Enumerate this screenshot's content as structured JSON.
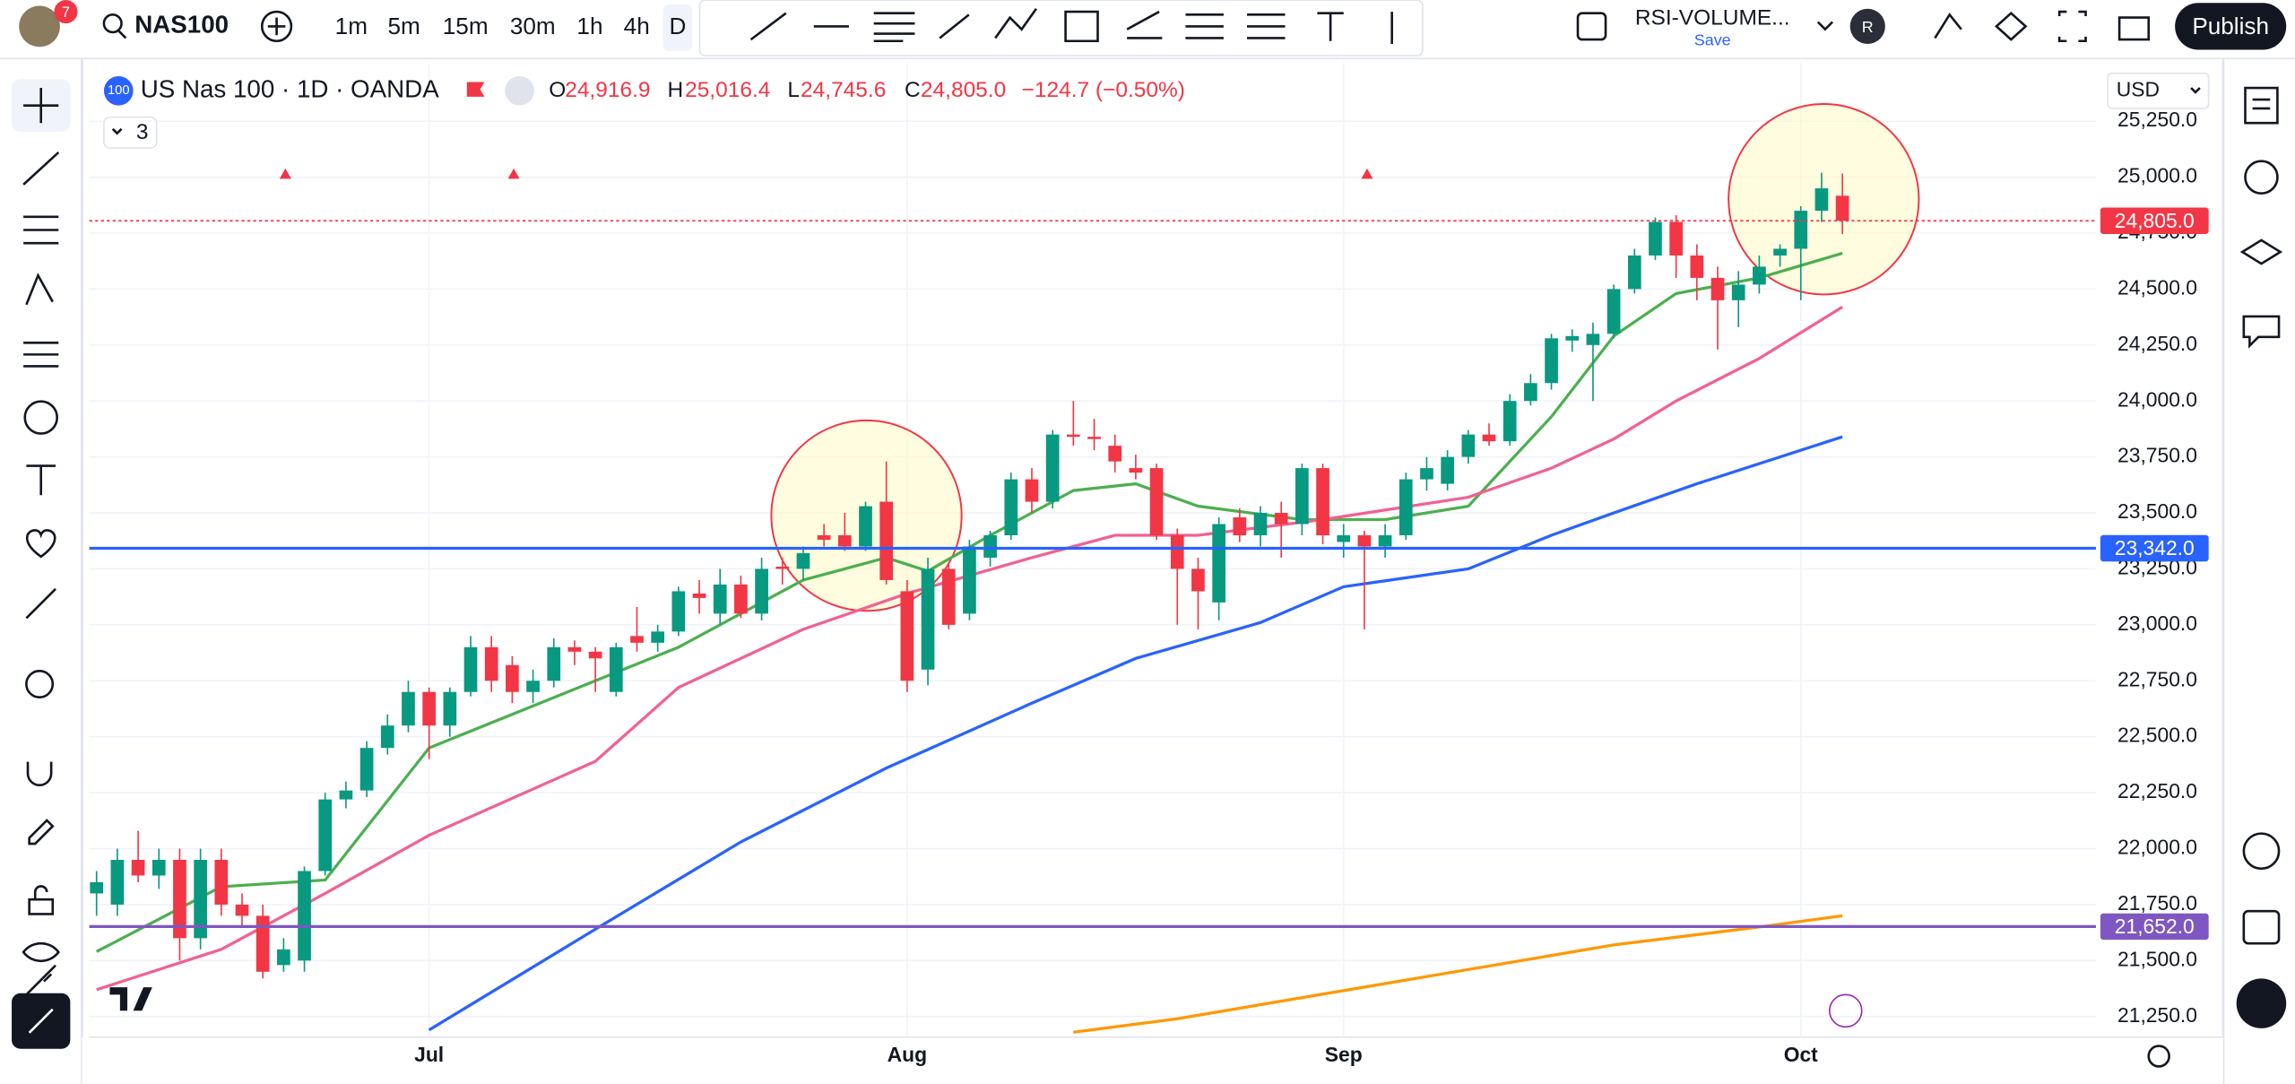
{
  "toolbar": {
    "badge": "7",
    "symbol": "NAS100",
    "intervals": [
      "1m",
      "5m",
      "15m",
      "30m",
      "1h",
      "4h",
      "D"
    ],
    "layout_name": "RSI-VOLUME...",
    "save": "Save",
    "user": "R",
    "publish": "Publish"
  },
  "legend": {
    "icon": "100",
    "title": "US Nas 100 · 1D · OANDA",
    "o_label": "O",
    "o": "24,916.9",
    "h_label": "H",
    "h": "25,016.4",
    "l_label": "L",
    "l": "24,745.6",
    "c_label": "C",
    "c": "24,805.0",
    "change": "−124.7 (−0.50%)",
    "indicators": "3",
    "currency": "USD"
  },
  "chart": {
    "type": "candlestick",
    "up_color": "#089981",
    "down_color": "#f23645",
    "xlim": [
      -0.35,
      96.2
    ],
    "ylim": [
      21158,
      25510
    ],
    "xticks": [
      {
        "value": 16,
        "label": "Jul"
      },
      {
        "value": 39,
        "label": "Aug"
      },
      {
        "value": 60,
        "label": "Sep"
      },
      {
        "value": 82,
        "label": "Oct"
      }
    ],
    "yticks": [
      {
        "value": 21250,
        "label": "21,250.0"
      },
      {
        "value": 21500,
        "label": "21,500.0"
      },
      {
        "value": 21750,
        "label": "21,750.0"
      },
      {
        "value": 22000,
        "label": "22,000.0"
      },
      {
        "value": 22250,
        "label": "22,250.0"
      },
      {
        "value": 22500,
        "label": "22,500.0"
      },
      {
        "value": 22750,
        "label": "22,750.0"
      },
      {
        "value": 23000,
        "label": "23,000.0"
      },
      {
        "value": 23250,
        "label": "23,250.0"
      },
      {
        "value": 23500,
        "label": "23,500.0"
      },
      {
        "value": 23750,
        "label": "23,750.0"
      },
      {
        "value": 24000,
        "label": "24,000.0"
      },
      {
        "value": 24250,
        "label": "24,250.0"
      },
      {
        "value": 24500,
        "label": "24,500.0"
      },
      {
        "value": 24750,
        "label": "24,750.0"
      },
      {
        "value": 25000,
        "label": "25,000.0"
      },
      {
        "value": 25250,
        "label": "25,250.0"
      }
    ],
    "candles": [
      [
        21800,
        21900,
        21700,
        21850
      ],
      [
        21750,
        22000,
        21700,
        21950
      ],
      [
        21950,
        22080,
        21850,
        21880
      ],
      [
        21880,
        22000,
        21820,
        21950
      ],
      [
        21950,
        22000,
        21500,
        21600
      ],
      [
        21600,
        22000,
        21550,
        21950
      ],
      [
        21950,
        22000,
        21700,
        21750
      ],
      [
        21750,
        21800,
        21650,
        21700
      ],
      [
        21700,
        21750,
        21420,
        21450
      ],
      [
        21480,
        21600,
        21450,
        21550
      ],
      [
        21500,
        21920,
        21450,
        21900
      ],
      [
        21900,
        22250,
        21880,
        22220
      ],
      [
        22220,
        22300,
        22180,
        22260
      ],
      [
        22260,
        22480,
        22230,
        22450
      ],
      [
        22450,
        22600,
        22420,
        22550
      ],
      [
        22550,
        22750,
        22520,
        22700
      ],
      [
        22700,
        22720,
        22400,
        22550
      ],
      [
        22550,
        22720,
        22500,
        22700
      ],
      [
        22700,
        22950,
        22680,
        22900
      ],
      [
        22900,
        22950,
        22700,
        22750
      ],
      [
        22820,
        22860,
        22650,
        22700
      ],
      [
        22700,
        22800,
        22650,
        22750
      ],
      [
        22750,
        22940,
        22720,
        22900
      ],
      [
        22900,
        22930,
        22820,
        22880
      ],
      [
        22880,
        22900,
        22700,
        22850
      ],
      [
        22700,
        22920,
        22680,
        22900
      ],
      [
        22950,
        23080,
        22880,
        22920
      ],
      [
        22920,
        23000,
        22880,
        22970
      ],
      [
        22970,
        23170,
        22950,
        23150
      ],
      [
        23140,
        23200,
        23050,
        23120
      ],
      [
        23050,
        23250,
        23000,
        23180
      ],
      [
        23180,
        23220,
        23030,
        23050
      ],
      [
        23050,
        23300,
        23020,
        23250
      ],
      [
        23260,
        23300,
        23180,
        23250
      ],
      [
        23250,
        23350,
        23200,
        23320
      ],
      [
        23400,
        23450,
        23350,
        23380
      ],
      [
        23400,
        23500,
        23330,
        23350
      ],
      [
        23350,
        23550,
        23330,
        23530
      ],
      [
        23550,
        23730,
        23180,
        23200
      ],
      [
        23150,
        23200,
        22700,
        22750
      ],
      [
        22800,
        23300,
        22730,
        23250
      ],
      [
        23250,
        23280,
        22980,
        23000
      ],
      [
        23050,
        23380,
        23020,
        23350
      ],
      [
        23300,
        23420,
        23260,
        23400
      ],
      [
        23400,
        23680,
        23380,
        23650
      ],
      [
        23650,
        23700,
        23500,
        23550
      ],
      [
        23550,
        23870,
        23520,
        23850
      ],
      [
        23850,
        24000,
        23800,
        23840
      ],
      [
        23840,
        23920,
        23780,
        23830
      ],
      [
        23800,
        23850,
        23680,
        23730
      ],
      [
        23700,
        23760,
        23650,
        23680
      ],
      [
        23700,
        23720,
        23380,
        23400
      ],
      [
        23400,
        23430,
        23000,
        23250
      ],
      [
        23250,
        23300,
        22980,
        23150
      ],
      [
        23100,
        23480,
        23020,
        23450
      ],
      [
        23480,
        23520,
        23370,
        23400
      ],
      [
        23400,
        23530,
        23350,
        23500
      ],
      [
        23500,
        23550,
        23300,
        23450
      ],
      [
        23450,
        23720,
        23400,
        23700
      ],
      [
        23700,
        23720,
        23360,
        23400
      ],
      [
        23370,
        23450,
        23300,
        23400
      ],
      [
        23400,
        23420,
        22980,
        23350
      ],
      [
        23350,
        23450,
        23300,
        23400
      ],
      [
        23400,
        23680,
        23380,
        23650
      ],
      [
        23650,
        23750,
        23600,
        23700
      ],
      [
        23630,
        23780,
        23600,
        23750
      ],
      [
        23750,
        23870,
        23720,
        23850
      ],
      [
        23850,
        23900,
        23800,
        23820
      ],
      [
        23820,
        24030,
        23800,
        24000
      ],
      [
        24000,
        24120,
        23980,
        24080
      ],
      [
        24080,
        24300,
        24050,
        24280
      ],
      [
        24270,
        24320,
        24220,
        24290
      ],
      [
        24250,
        24350,
        24000,
        24300
      ],
      [
        24300,
        24520,
        24280,
        24500
      ],
      [
        24500,
        24680,
        24480,
        24650
      ],
      [
        24650,
        24820,
        24630,
        24800
      ],
      [
        24800,
        24830,
        24550,
        24650
      ],
      [
        24650,
        24700,
        24450,
        24550
      ],
      [
        24550,
        24600,
        24230,
        24450
      ],
      [
        24450,
        24580,
        24330,
        24520
      ],
      [
        24520,
        24650,
        24480,
        24600
      ],
      [
        24650,
        24700,
        24600,
        24680
      ],
      [
        24680,
        24870,
        24450,
        24850
      ],
      [
        24850,
        25020,
        24800,
        24950
      ],
      [
        24916.9,
        25016.4,
        24745.6,
        24805.0
      ]
    ],
    "moving_averages": [
      {
        "color": "#4caf50",
        "x": [
          0,
          6,
          11,
          16,
          24,
          28,
          34,
          38,
          40,
          43,
          47,
          50,
          53,
          58,
          62,
          66,
          70,
          73,
          76,
          80,
          84
        ],
        "values": [
          21540,
          21830,
          21860,
          22450,
          22750,
          22900,
          23200,
          23300,
          23240,
          23400,
          23600,
          23630,
          23530,
          23470,
          23470,
          23530,
          23930,
          24290,
          24480,
          24550,
          24660
        ]
      },
      {
        "color": "#f06292",
        "x": [
          0,
          6,
          11,
          16,
          24,
          28,
          34,
          39,
          45,
          49,
          53,
          59,
          66,
          70,
          73,
          76,
          80,
          84
        ],
        "values": [
          21370,
          21550,
          21800,
          22060,
          22390,
          22720,
          22980,
          23140,
          23300,
          23400,
          23400,
          23470,
          23570,
          23700,
          23830,
          24000,
          24190,
          24420
        ]
      },
      {
        "color": "#2962ff",
        "x": [
          16,
          24,
          31,
          38,
          45,
          50,
          56,
          60,
          66,
          70,
          73,
          77,
          84
        ],
        "values": [
          21190,
          21640,
          22030,
          22360,
          22650,
          22850,
          23010,
          23170,
          23250,
          23400,
          23500,
          23630,
          23840
        ]
      },
      {
        "color": "#ff9800",
        "x": [
          47,
          52,
          59,
          66,
          73,
          80,
          84
        ],
        "values": [
          21180,
          21240,
          21350,
          21460,
          21570,
          21650,
          21700
        ]
      }
    ],
    "price_lines": [
      {
        "value": 24805,
        "label": "24,805.0",
        "color": "#f23645",
        "dashed": true
      },
      {
        "value": 23342,
        "label": "23,342.0",
        "color": "#2962ff",
        "dashed": false
      },
      {
        "value": 21652,
        "label": "21,652.0",
        "color": "#7e57c2",
        "dashed": false
      }
    ]
  }
}
